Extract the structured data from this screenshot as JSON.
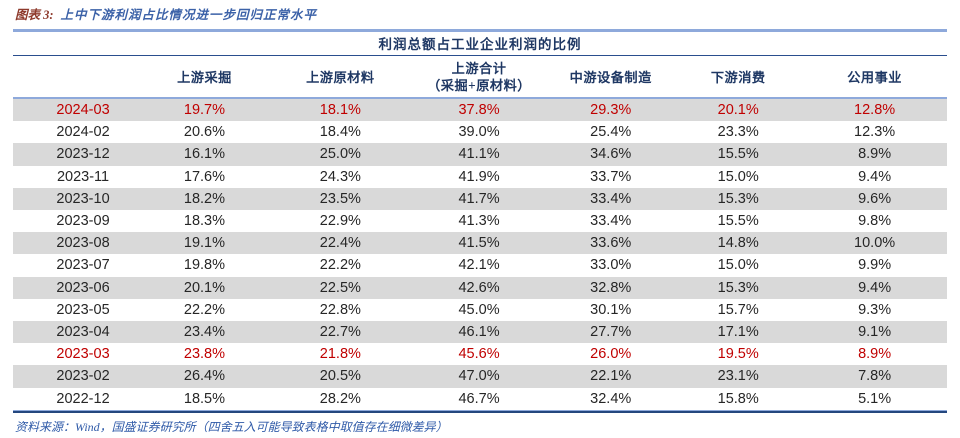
{
  "colors": {
    "accent_navy": "#1F3864",
    "rule_light_blue": "#8EA9DB",
    "rule_dark_blue": "#24477E",
    "highlight_red": "#C00000",
    "stripe_gray": "#D9D9D9",
    "body_text": "#262626",
    "caption_label_color": "#8E3A2C",
    "caption_title_color": "#3C62A8",
    "source_text_color": "#2F5AA8"
  },
  "caption": {
    "label": "图表 3:",
    "title": "上中下游利润占比情况进一步回归正常水平"
  },
  "table": {
    "span_header": "利润总额占工业企业利润的比例",
    "columns": [
      {
        "lines": [
          "上游采掘"
        ]
      },
      {
        "lines": [
          "上游原材料"
        ]
      },
      {
        "lines": [
          "上游合计",
          "（采掘+原材料）"
        ]
      },
      {
        "lines": [
          "中游设备制造"
        ]
      },
      {
        "lines": [
          "下游消费"
        ]
      },
      {
        "lines": [
          "公用事业"
        ]
      }
    ],
    "rows": [
      {
        "date": "2024-03",
        "values": [
          "19.7%",
          "18.1%",
          "37.8%",
          "29.3%",
          "20.1%",
          "12.8%"
        ],
        "red": true
      },
      {
        "date": "2024-02",
        "values": [
          "20.6%",
          "18.4%",
          "39.0%",
          "25.4%",
          "23.3%",
          "12.3%"
        ],
        "red": false
      },
      {
        "date": "2023-12",
        "values": [
          "16.1%",
          "25.0%",
          "41.1%",
          "34.6%",
          "15.5%",
          "8.9%"
        ],
        "red": false
      },
      {
        "date": "2023-11",
        "values": [
          "17.6%",
          "24.3%",
          "41.9%",
          "33.7%",
          "15.0%",
          "9.4%"
        ],
        "red": false
      },
      {
        "date": "2023-10",
        "values": [
          "18.2%",
          "23.5%",
          "41.7%",
          "33.4%",
          "15.3%",
          "9.6%"
        ],
        "red": false
      },
      {
        "date": "2023-09",
        "values": [
          "18.3%",
          "22.9%",
          "41.3%",
          "33.4%",
          "15.5%",
          "9.8%"
        ],
        "red": false
      },
      {
        "date": "2023-08",
        "values": [
          "19.1%",
          "22.4%",
          "41.5%",
          "33.6%",
          "14.8%",
          "10.0%"
        ],
        "red": false
      },
      {
        "date": "2023-07",
        "values": [
          "19.8%",
          "22.2%",
          "42.1%",
          "33.0%",
          "15.0%",
          "9.9%"
        ],
        "red": false
      },
      {
        "date": "2023-06",
        "values": [
          "20.1%",
          "22.5%",
          "42.6%",
          "32.8%",
          "15.3%",
          "9.4%"
        ],
        "red": false
      },
      {
        "date": "2023-05",
        "values": [
          "22.2%",
          "22.8%",
          "45.0%",
          "30.1%",
          "15.7%",
          "9.3%"
        ],
        "red": false
      },
      {
        "date": "2023-04",
        "values": [
          "23.4%",
          "22.7%",
          "46.1%",
          "27.7%",
          "17.1%",
          "9.1%"
        ],
        "red": false
      },
      {
        "date": "2023-03",
        "values": [
          "23.8%",
          "21.8%",
          "45.6%",
          "26.0%",
          "19.5%",
          "8.9%"
        ],
        "red": true
      },
      {
        "date": "2023-02",
        "values": [
          "26.4%",
          "20.5%",
          "47.0%",
          "22.1%",
          "23.1%",
          "7.8%"
        ],
        "red": false
      },
      {
        "date": "2022-12",
        "values": [
          "18.5%",
          "28.2%",
          "46.7%",
          "32.4%",
          "15.8%",
          "5.1%"
        ],
        "red": false
      }
    ]
  },
  "footer": {
    "source": "资料来源：Wind，国盛证券研究所（四舍五入可能导致表格中取值存在细微差异）"
  }
}
